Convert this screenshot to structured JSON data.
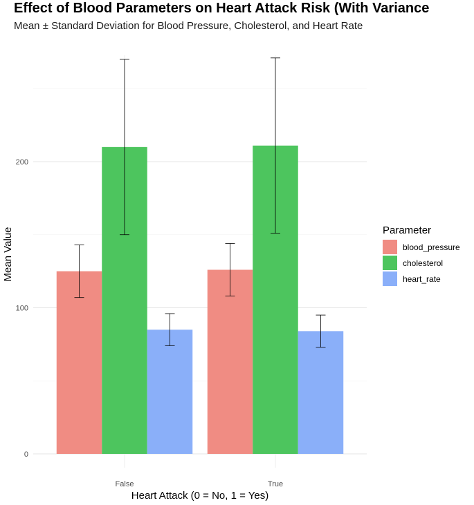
{
  "chart_data": {
    "type": "bar",
    "title": "Effect of Blood Parameters on Heart Attack Risk (With Variance",
    "subtitle": "Mean ± Standard Deviation for Blood Pressure, Cholesterol, and Heart Rate",
    "xlabel": "Heart Attack (0 = No, 1 = Yes)",
    "ylabel": "Mean Value",
    "categories": [
      "False",
      "True"
    ],
    "ylim": [
      0,
      280
    ],
    "yticks": [
      0,
      100,
      200
    ],
    "grid": true,
    "legend_title": "Parameter",
    "legend_position": "right",
    "series": [
      {
        "name": "blood_pressure",
        "color": "#F08C83",
        "values": [
          125,
          126
        ],
        "sd": [
          18,
          18
        ]
      },
      {
        "name": "cholesterol",
        "color": "#4DC55E",
        "values": [
          210,
          211
        ],
        "sd": [
          60,
          60
        ]
      },
      {
        "name": "heart_rate",
        "color": "#8AAFF9",
        "values": [
          85,
          84
        ],
        "sd": [
          11,
          11
        ]
      }
    ]
  }
}
